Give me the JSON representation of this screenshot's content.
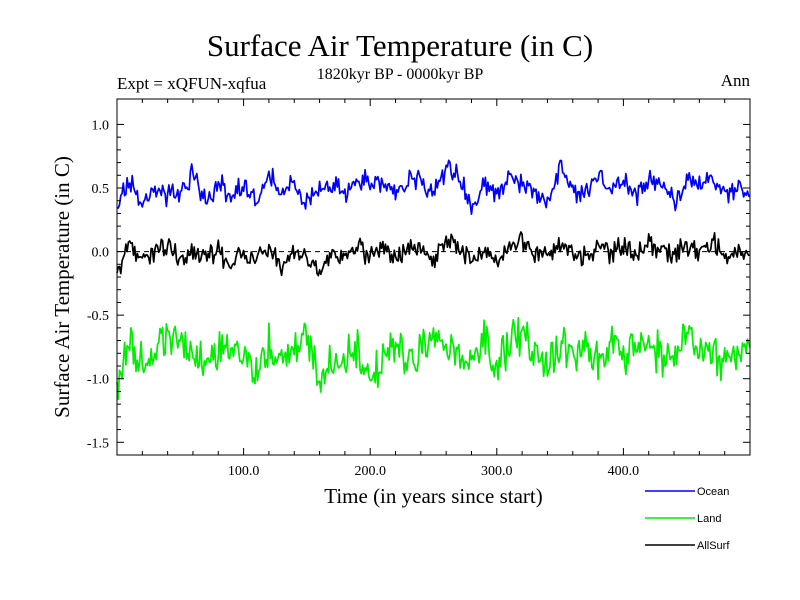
{
  "chart_data": {
    "type": "line",
    "title": "Surface Air Temperature (in C)",
    "subtitle": "1820kyr BP - 0000kyr BP",
    "experiment": "Expt = xQFUN-xqfua",
    "season": "Ann",
    "xlabel": "Time (in years since start)",
    "ylabel": "Surface Air Temperature (in C)",
    "xlim": [
      0,
      500
    ],
    "ylim": [
      -1.6,
      1.2
    ],
    "xticks": [
      100,
      200,
      300,
      400
    ],
    "xtick_labels": [
      "100.0",
      "200.0",
      "300.0",
      "400.0"
    ],
    "yticks": [
      1.0,
      0.5,
      0.0,
      -0.5,
      -1.0,
      -1.5
    ],
    "ytick_labels": [
      "1.0",
      "0.5",
      "0.0",
      "-0.5",
      "-1.0",
      "-1.5"
    ],
    "zero_line": true,
    "series": [
      {
        "name": "Ocean",
        "color": "#0000ff",
        "x": [
          0,
          10,
          20,
          30,
          40,
          50,
          60,
          70,
          80,
          90,
          100,
          110,
          120,
          130,
          140,
          150,
          160,
          170,
          180,
          190,
          200,
          210,
          220,
          230,
          240,
          250,
          260,
          270,
          280,
          290,
          300,
          310,
          320,
          330,
          340,
          350,
          360,
          370,
          380,
          390,
          400,
          410,
          420,
          430,
          440,
          450,
          460,
          470,
          480,
          490,
          500
        ],
        "values": [
          0.35,
          0.6,
          0.35,
          0.5,
          0.45,
          0.5,
          0.6,
          0.4,
          0.55,
          0.45,
          0.5,
          0.4,
          0.65,
          0.45,
          0.55,
          0.4,
          0.5,
          0.55,
          0.45,
          0.6,
          0.5,
          0.55,
          0.45,
          0.6,
          0.55,
          0.45,
          0.65,
          0.6,
          0.35,
          0.5,
          0.45,
          0.6,
          0.55,
          0.45,
          0.4,
          0.65,
          0.5,
          0.45,
          0.6,
          0.5,
          0.55,
          0.45,
          0.6,
          0.5,
          0.4,
          0.55,
          0.5,
          0.6,
          0.45,
          0.5,
          0.45
        ]
      },
      {
        "name": "Land",
        "color": "#00ee00",
        "x": [
          0,
          10,
          20,
          30,
          40,
          50,
          60,
          70,
          80,
          90,
          100,
          110,
          120,
          130,
          140,
          150,
          160,
          170,
          180,
          190,
          200,
          210,
          220,
          230,
          240,
          250,
          260,
          270,
          280,
          290,
          300,
          310,
          320,
          330,
          340,
          350,
          360,
          370,
          380,
          390,
          400,
          410,
          420,
          430,
          440,
          450,
          460,
          470,
          480,
          490,
          500
        ],
        "values": [
          -1.1,
          -0.7,
          -0.85,
          -0.8,
          -0.65,
          -0.75,
          -0.8,
          -0.9,
          -0.75,
          -0.85,
          -0.8,
          -0.95,
          -0.75,
          -0.85,
          -0.8,
          -0.7,
          -0.95,
          -0.8,
          -0.85,
          -0.75,
          -1.05,
          -0.8,
          -0.7,
          -0.85,
          -0.8,
          -0.65,
          -0.75,
          -0.8,
          -0.85,
          -0.7,
          -0.9,
          -0.75,
          -0.6,
          -0.8,
          -0.85,
          -0.75,
          -0.8,
          -0.7,
          -0.85,
          -0.75,
          -0.8,
          -0.7,
          -0.75,
          -0.8,
          -0.85,
          -0.65,
          -0.75,
          -0.8,
          -0.85,
          -0.8,
          -0.75
        ]
      },
      {
        "name": "AllSurf",
        "color": "#000000",
        "x": [
          0,
          10,
          20,
          30,
          40,
          50,
          60,
          70,
          80,
          90,
          100,
          110,
          120,
          130,
          140,
          150,
          160,
          170,
          180,
          190,
          200,
          210,
          220,
          230,
          240,
          250,
          260,
          270,
          280,
          290,
          300,
          310,
          320,
          330,
          340,
          350,
          360,
          370,
          380,
          390,
          400,
          410,
          420,
          430,
          440,
          450,
          460,
          470,
          480,
          490,
          500
        ],
        "values": [
          -0.15,
          0.05,
          -0.05,
          0.0,
          0.05,
          -0.05,
          0.0,
          -0.05,
          0.0,
          -0.1,
          0.0,
          -0.1,
          0.05,
          -0.1,
          0.0,
          -0.05,
          -0.15,
          0.0,
          -0.05,
          0.05,
          -0.05,
          0.05,
          -0.05,
          0.0,
          0.05,
          -0.1,
          0.1,
          0.05,
          -0.05,
          0.0,
          -0.1,
          0.05,
          0.1,
          -0.05,
          0.0,
          0.05,
          0.0,
          -0.05,
          0.05,
          0.0,
          0.05,
          -0.05,
          0.1,
          0.0,
          -0.05,
          0.05,
          0.0,
          0.1,
          -0.05,
          0.0,
          -0.05
        ]
      }
    ],
    "legend": {
      "placement": "bottom-right",
      "entries": [
        "Ocean",
        "Land",
        "AllSurf"
      ]
    }
  }
}
